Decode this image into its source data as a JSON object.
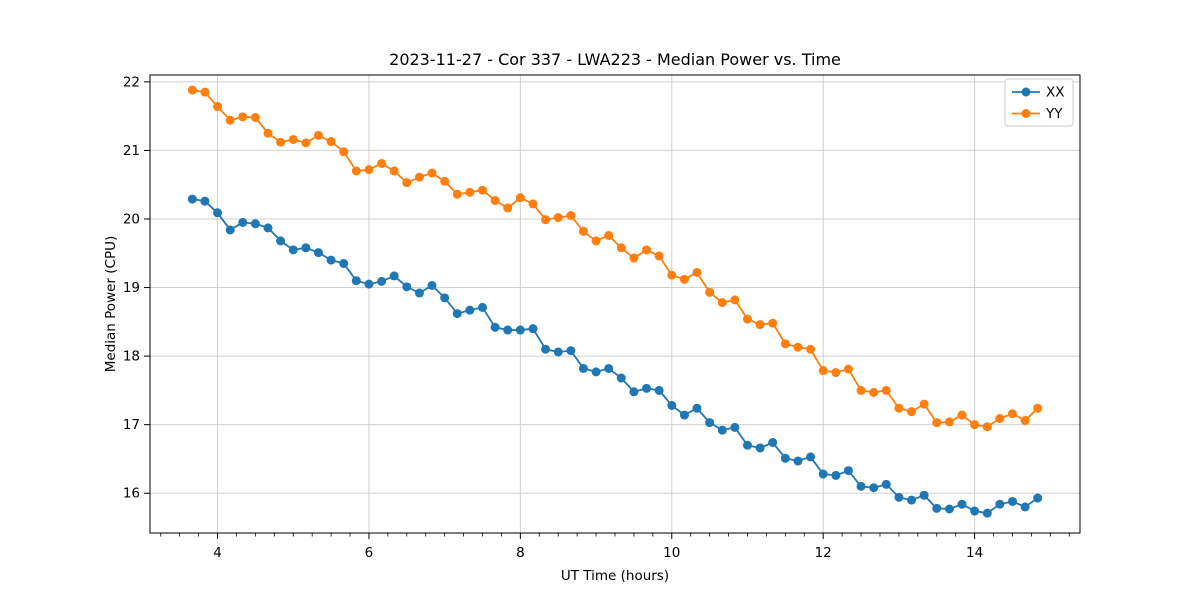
{
  "figure": {
    "background": "#ffffff"
  },
  "chart_data": {
    "type": "line",
    "title": "2023-11-27 - Cor 337 - LWA223 - Median Power vs. Time",
    "xlabel": "UT Time (hours)",
    "ylabel": "Median Power (CPU)",
    "xlim": [
      3.108,
      15.392
    ],
    "ylim": [
      15.42,
      22.1
    ],
    "xticks": [
      4,
      6,
      8,
      10,
      12,
      14
    ],
    "yticks": [
      16,
      17,
      18,
      19,
      20,
      21,
      22
    ],
    "x_minor_step": 0.25,
    "grid": true,
    "legend_position": "upper right",
    "grid_color": "#d0d0d0",
    "x": [
      3.667,
      3.833,
      4.0,
      4.167,
      4.333,
      4.5,
      4.667,
      4.833,
      5.0,
      5.167,
      5.333,
      5.5,
      5.667,
      5.833,
      6.0,
      6.167,
      6.333,
      6.5,
      6.667,
      6.833,
      7.0,
      7.167,
      7.333,
      7.5,
      7.667,
      7.833,
      8.0,
      8.167,
      8.333,
      8.5,
      8.667,
      8.833,
      9.0,
      9.167,
      9.333,
      9.5,
      9.667,
      9.833,
      10.0,
      10.167,
      10.333,
      10.5,
      10.667,
      10.833,
      11.0,
      11.167,
      11.333,
      11.5,
      11.667,
      11.833,
      12.0,
      12.167,
      12.333,
      12.5,
      12.667,
      12.833,
      13.0,
      13.167,
      13.333,
      13.5,
      13.667,
      13.833,
      14.0,
      14.167,
      14.333,
      14.5,
      14.667,
      14.833
    ],
    "series": [
      {
        "name": "XX",
        "color": "#1f77b4",
        "values": [
          20.29,
          20.26,
          20.09,
          19.84,
          19.95,
          19.93,
          19.87,
          19.68,
          19.55,
          19.58,
          19.51,
          19.4,
          19.35,
          19.1,
          19.05,
          19.09,
          19.17,
          19.01,
          18.92,
          19.03,
          18.85,
          18.62,
          18.67,
          18.71,
          18.42,
          18.38,
          18.38,
          18.4,
          18.1,
          18.06,
          18.08,
          17.82,
          17.77,
          17.82,
          17.68,
          17.48,
          17.53,
          17.5,
          17.28,
          17.14,
          17.24,
          17.03,
          16.92,
          16.96,
          16.7,
          16.66,
          16.74,
          16.51,
          16.47,
          16.53,
          16.28,
          16.26,
          16.33,
          16.1,
          16.08,
          16.13,
          15.94,
          15.9,
          15.97,
          15.78,
          15.77,
          15.84,
          15.74,
          15.71,
          15.84,
          15.88,
          15.8,
          15.93
        ]
      },
      {
        "name": "YY",
        "color": "#ff7f0e",
        "values": [
          21.88,
          21.85,
          21.64,
          21.44,
          21.49,
          21.48,
          21.25,
          21.12,
          21.16,
          21.11,
          21.22,
          21.13,
          20.98,
          20.7,
          20.72,
          20.81,
          20.7,
          20.53,
          20.61,
          20.67,
          20.55,
          20.36,
          20.39,
          20.42,
          20.27,
          20.16,
          20.31,
          20.22,
          19.99,
          20.02,
          20.05,
          19.82,
          19.68,
          19.76,
          19.58,
          19.43,
          19.55,
          19.46,
          19.18,
          19.12,
          19.22,
          18.93,
          18.78,
          18.82,
          18.54,
          18.46,
          18.48,
          18.18,
          18.13,
          18.1,
          17.79,
          17.76,
          17.81,
          17.5,
          17.47,
          17.5,
          17.24,
          17.19,
          17.3,
          17.03,
          17.04,
          17.14,
          17.0,
          16.97,
          17.09,
          17.16,
          17.06,
          17.24
        ]
      }
    ]
  }
}
